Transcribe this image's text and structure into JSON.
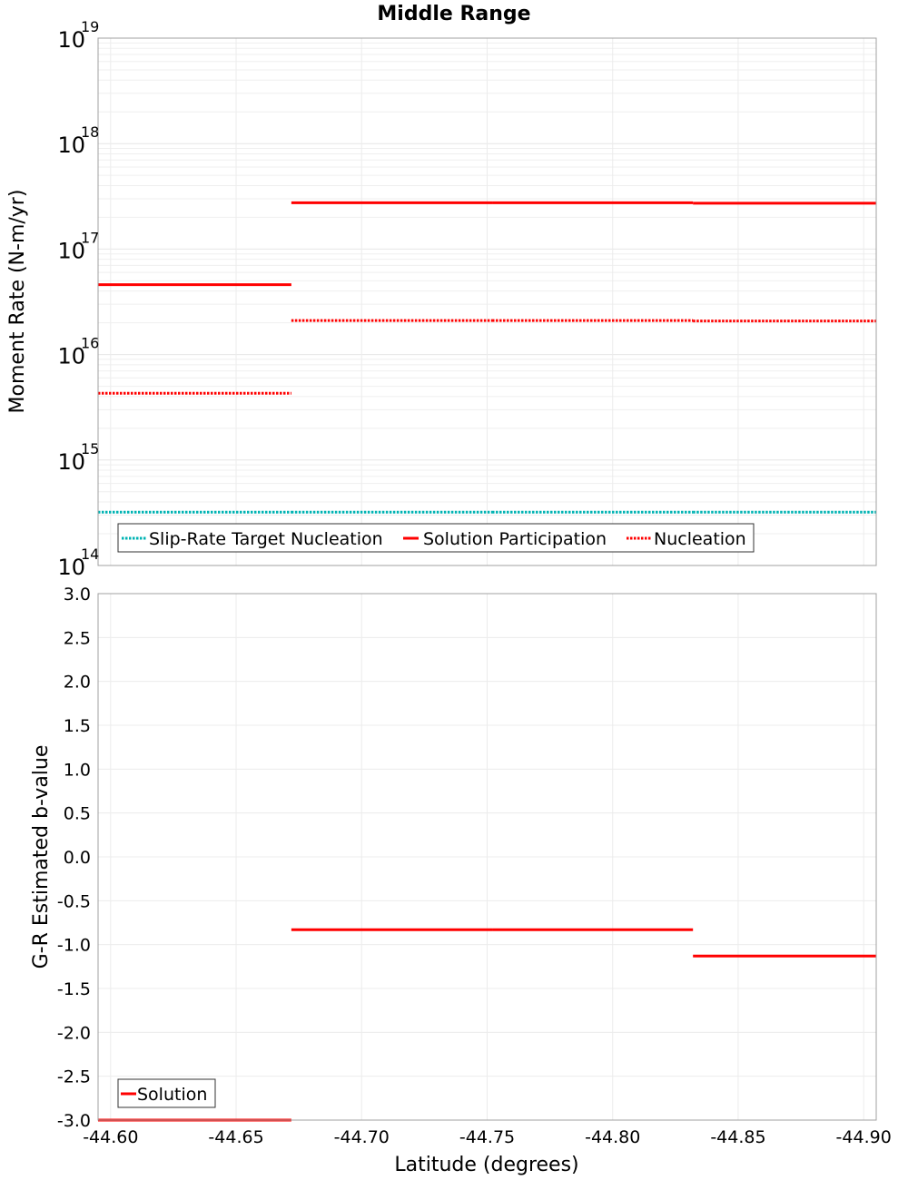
{
  "chart_data": [
    {
      "type": "line",
      "title": "Middle Range",
      "xlabel": "Latitude (degrees)",
      "ylabel": "Moment Rate (N-m/yr)",
      "yscale": "log",
      "xlim": [
        -44.595,
        -44.905
      ],
      "ylim": [
        100000000000000.0,
        1e+19
      ],
      "y_tick_base": "10",
      "y_tick_exponents": [
        "14",
        "15",
        "16",
        "17",
        "18",
        "19"
      ],
      "legend_position": "bottom-left",
      "series": [
        {
          "name": "Slip-Rate Target Nucleation",
          "color": "#00b3b3",
          "style": "dotted",
          "segments": [
            {
              "x": [
                -44.595,
                -44.672
              ],
              "y": 320000000000000.0
            },
            {
              "x": [
                -44.672,
                -44.752
              ],
              "y": 320000000000000.0
            },
            {
              "x": [
                -44.752,
                -44.832
              ],
              "y": 320000000000000.0
            },
            {
              "x": [
                -44.832,
                -44.905
              ],
              "y": 320000000000000.0
            }
          ]
        },
        {
          "name": "Solution Participation",
          "color": "#ff0000",
          "style": "solid",
          "segments": [
            {
              "x": [
                -44.595,
                -44.672
              ],
              "y": 4.6e+16
            },
            {
              "x": [
                -44.672,
                -44.752
              ],
              "y": 2.75e+17
            },
            {
              "x": [
                -44.752,
                -44.832
              ],
              "y": 2.75e+17
            },
            {
              "x": [
                -44.832,
                -44.905
              ],
              "y": 2.72e+17
            }
          ]
        },
        {
          "name": "Nucleation",
          "color": "#ff0000",
          "style": "dotted",
          "segments": [
            {
              "x": [
                -44.595,
                -44.672
              ],
              "y": 4300000000000000.0
            },
            {
              "x": [
                -44.672,
                -44.752
              ],
              "y": 2.1e+16
            },
            {
              "x": [
                -44.752,
                -44.832
              ],
              "y": 2.1e+16
            },
            {
              "x": [
                -44.832,
                -44.905
              ],
              "y": 2.08e+16
            }
          ]
        }
      ]
    },
    {
      "type": "line",
      "title": "",
      "xlabel": "Latitude (degrees)",
      "ylabel": "G-R Estimated b-value",
      "xlim": [
        -44.595,
        -44.905
      ],
      "ylim": [
        -3.0,
        3.0
      ],
      "x_ticks": [
        -44.6,
        -44.65,
        -44.7,
        -44.75,
        -44.8,
        -44.85,
        -44.9
      ],
      "x_tick_labels": [
        "-44.60",
        "-44.65",
        "-44.70",
        "-44.75",
        "-44.80",
        "-44.85",
        "-44.90"
      ],
      "y_ticks": [
        3.0,
        2.5,
        2.0,
        1.5,
        1.0,
        0.5,
        0.0,
        -0.5,
        -1.0,
        -1.5,
        -2.0,
        -2.5,
        -3.0
      ],
      "y_tick_labels": [
        "3.0",
        "2.5",
        "2.0",
        "1.5",
        "1.0",
        "0.5",
        "0.0",
        "-0.5",
        "-1.0",
        "-1.5",
        "-2.0",
        "-2.5",
        "-3.0"
      ],
      "legend_position": "bottom-left",
      "series": [
        {
          "name": "Solution",
          "color": "#ff0000",
          "style": "solid",
          "segments": [
            {
              "x": [
                -44.595,
                -44.672
              ],
              "y": -3.0
            },
            {
              "x": [
                -44.672,
                -44.752
              ],
              "y": -0.83
            },
            {
              "x": [
                -44.752,
                -44.832
              ],
              "y": -0.83
            },
            {
              "x": [
                -44.832,
                -44.905
              ],
              "y": -1.13
            }
          ]
        }
      ]
    }
  ]
}
